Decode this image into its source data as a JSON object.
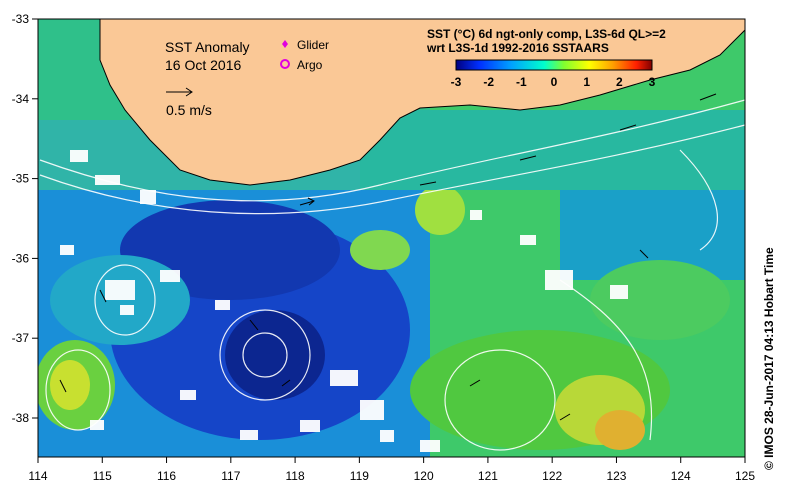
{
  "map": {
    "title_line1": "SST Anomaly",
    "title_line2": "16 Oct 2016",
    "scale_label": "0.5 m/s",
    "legend_glider": "Glider",
    "legend_argo": "Argo",
    "legend_glider_color": "#e000e0",
    "legend_argo_color": "#e000e0",
    "colorbar_title1": "SST (°C) 6d ngt-only comp, L3S-6d QL>=2",
    "colorbar_title2": "wrt L3S-1d 1992-2016 SSTAARS",
    "colorbar_ticks": [
      "-3",
      "-2",
      "-1",
      "0",
      "1",
      "2",
      "3"
    ],
    "colorbar_colors": [
      "#000080",
      "#0030ff",
      "#00a0ff",
      "#00ffcc",
      "#80ff30",
      "#ffff00",
      "#ffa000",
      "#ff2000",
      "#800000"
    ],
    "land_color": "#fac896",
    "x_ticks": [
      "114",
      "115",
      "116",
      "117",
      "118",
      "119",
      "120",
      "121",
      "122",
      "123",
      "124",
      "125"
    ],
    "y_ticks": [
      "-33",
      "-34",
      "-35",
      "-36",
      "-37",
      "-38"
    ],
    "credit": "© IMOS 28-Jun-2017 04:13 Hobart Time"
  }
}
